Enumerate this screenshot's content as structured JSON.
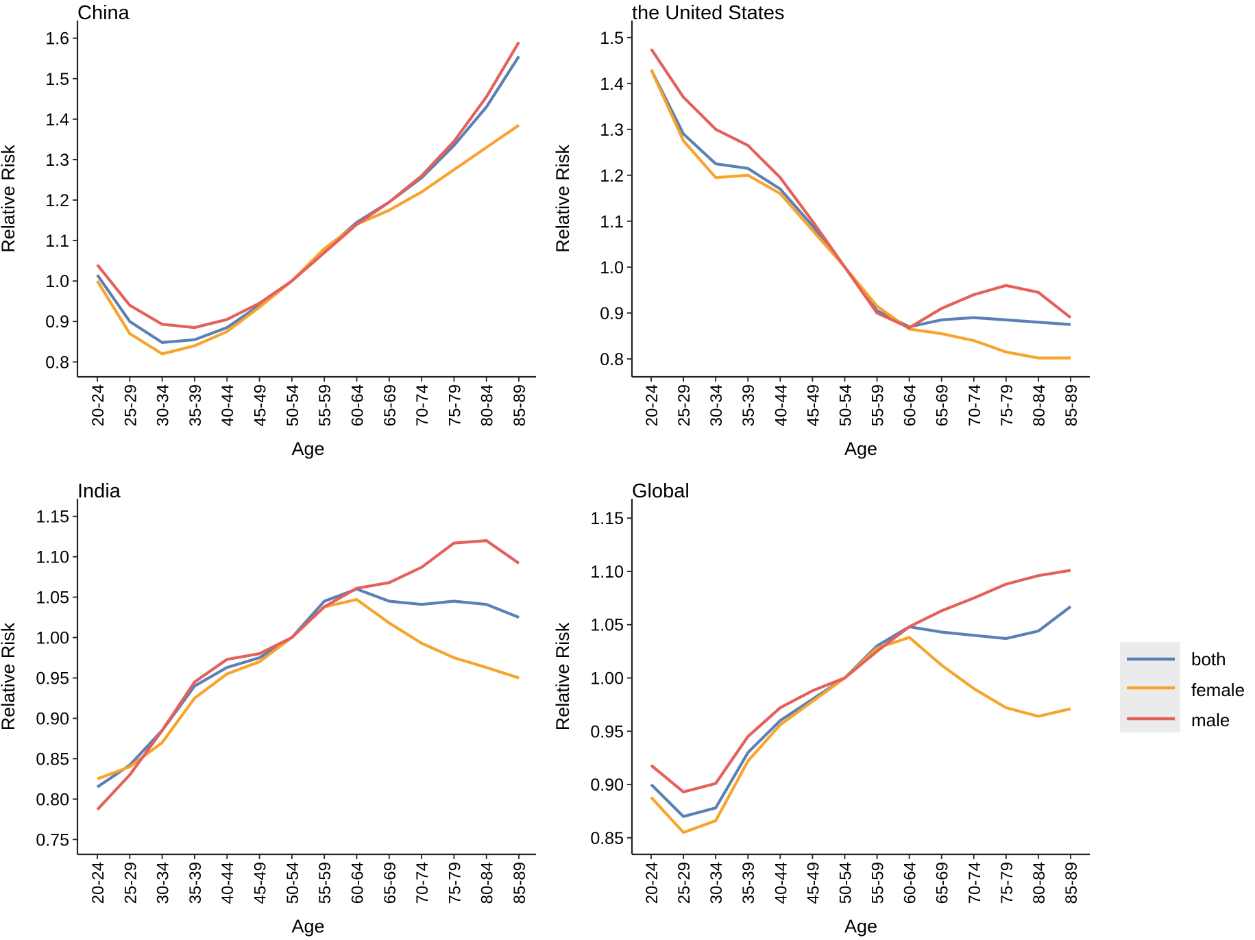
{
  "chart_data": [
    {
      "type": "line",
      "title": "China",
      "xlabel": "Age",
      "ylabel": "Relative Risk",
      "categories": [
        "20-24",
        "25-29",
        "30-34",
        "35-39",
        "40-44",
        "45-49",
        "50-54",
        "55-59",
        "60-64",
        "65-69",
        "70-74",
        "75-79",
        "80-84",
        "85-89"
      ],
      "ylim": [
        0.77,
        1.63
      ],
      "yticks": [
        "0.8",
        "0.9",
        "1.0",
        "1.1",
        "1.2",
        "1.3",
        "1.4",
        "1.5",
        "1.6"
      ],
      "series": [
        {
          "name": "both",
          "values": [
            1.015,
            0.9,
            0.848,
            0.855,
            0.885,
            0.94,
            1.0,
            1.075,
            1.145,
            1.195,
            1.255,
            1.335,
            1.43,
            1.555
          ]
        },
        {
          "name": "female",
          "values": [
            1.0,
            0.87,
            0.82,
            0.84,
            0.875,
            0.935,
            1.0,
            1.08,
            1.14,
            1.175,
            1.22,
            1.275,
            1.33,
            1.385
          ]
        },
        {
          "name": "male",
          "values": [
            1.04,
            0.94,
            0.893,
            0.885,
            0.905,
            0.945,
            1.0,
            1.07,
            1.14,
            1.195,
            1.26,
            1.345,
            1.455,
            1.59
          ]
        }
      ]
    },
    {
      "type": "line",
      "title": "the United States",
      "xlabel": "Age",
      "ylabel": "Relative Risk",
      "categories": [
        "20-24",
        "25-29",
        "30-34",
        "35-39",
        "40-44",
        "45-49",
        "50-54",
        "55-59",
        "60-64",
        "65-69",
        "70-74",
        "75-79",
        "80-84",
        "85-89"
      ],
      "ylim": [
        0.767,
        1.525
      ],
      "yticks": [
        "0.8",
        "0.9",
        "1.0",
        "1.1",
        "1.2",
        "1.3",
        "1.4",
        "1.5"
      ],
      "series": [
        {
          "name": "both",
          "values": [
            1.43,
            1.29,
            1.225,
            1.215,
            1.17,
            1.09,
            1.0,
            0.905,
            0.87,
            0.885,
            0.89,
            0.885,
            0.88,
            0.875
          ]
        },
        {
          "name": "female",
          "values": [
            1.43,
            1.275,
            1.195,
            1.2,
            1.16,
            1.08,
            1.0,
            0.915,
            0.865,
            0.855,
            0.84,
            0.815,
            0.802,
            0.802
          ]
        },
        {
          "name": "male",
          "values": [
            1.475,
            1.37,
            1.3,
            1.265,
            1.195,
            1.1,
            1.0,
            0.9,
            0.868,
            0.91,
            0.94,
            0.96,
            0.945,
            0.89
          ]
        }
      ]
    },
    {
      "type": "line",
      "title": "India",
      "xlabel": "Age",
      "ylabel": "Relative Risk",
      "categories": [
        "20-24",
        "25-29",
        "30-34",
        "35-39",
        "40-44",
        "45-49",
        "50-54",
        "55-59",
        "60-64",
        "65-69",
        "70-74",
        "75-79",
        "80-84",
        "85-89"
      ],
      "ylim": [
        0.735,
        1.165
      ],
      "yticks": [
        "0.75",
        "0.80",
        "0.85",
        "0.90",
        "0.95",
        "1.00",
        "1.05",
        "1.10",
        "1.15"
      ],
      "series": [
        {
          "name": "both",
          "values": [
            0.815,
            0.842,
            0.885,
            0.94,
            0.963,
            0.975,
            1.0,
            1.045,
            1.06,
            1.045,
            1.041,
            1.045,
            1.041,
            1.025
          ]
        },
        {
          "name": "female",
          "values": [
            0.825,
            0.84,
            0.87,
            0.925,
            0.955,
            0.97,
            1.0,
            1.038,
            1.047,
            1.018,
            0.993,
            0.975,
            0.963,
            0.95
          ]
        },
        {
          "name": "male",
          "values": [
            0.787,
            0.83,
            0.885,
            0.945,
            0.973,
            0.98,
            1.0,
            1.038,
            1.061,
            1.068,
            1.087,
            1.117,
            1.12,
            1.092
          ]
        }
      ]
    },
    {
      "type": "line",
      "title": "Global",
      "xlabel": "Age",
      "ylabel": "Relative Risk",
      "categories": [
        "20-24",
        "25-29",
        "30-34",
        "35-39",
        "40-44",
        "45-49",
        "50-54",
        "55-59",
        "60-64",
        "65-69",
        "70-74",
        "75-79",
        "80-84",
        "85-89"
      ],
      "ylim": [
        0.837,
        1.163
      ],
      "yticks": [
        "0.85",
        "0.90",
        "0.95",
        "1.00",
        "1.05",
        "1.10",
        "1.15"
      ],
      "series": [
        {
          "name": "both",
          "values": [
            0.9,
            0.87,
            0.878,
            0.93,
            0.96,
            0.98,
            1.0,
            1.03,
            1.048,
            1.043,
            1.04,
            1.037,
            1.044,
            1.067
          ]
        },
        {
          "name": "female",
          "values": [
            0.888,
            0.855,
            0.866,
            0.922,
            0.956,
            0.978,
            1.0,
            1.028,
            1.038,
            1.012,
            0.99,
            0.972,
            0.964,
            0.971
          ]
        },
        {
          "name": "male",
          "values": [
            0.918,
            0.893,
            0.901,
            0.945,
            0.972,
            0.988,
            1.0,
            1.025,
            1.048,
            1.063,
            1.075,
            1.088,
            1.096,
            1.101
          ]
        }
      ]
    }
  ],
  "legend": {
    "placement": "right",
    "items": [
      {
        "label": "both",
        "color": "#5B80B5"
      },
      {
        "label": "female",
        "color": "#F7A42B"
      },
      {
        "label": "male",
        "color": "#E4605B"
      }
    ]
  },
  "colors": {
    "both": "#5B80B5",
    "female": "#F7A42B",
    "male": "#E4605B",
    "axis": "#222222",
    "legend_bg": "#EBEBEB"
  }
}
